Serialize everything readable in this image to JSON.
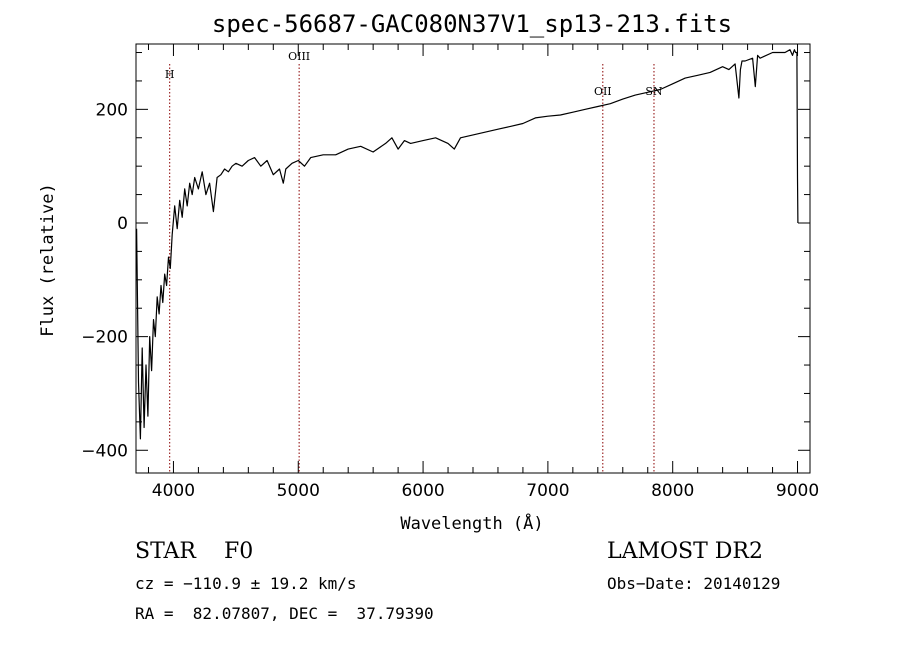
{
  "chart_data": {
    "type": "line",
    "title": "spec-56687-GAC080N37V1_sp13-213.fits",
    "xlabel": "Wavelength (Å)",
    "ylabel": "Flux (relative)",
    "xlim": [
      3700,
      9100
    ],
    "ylim": [
      -440,
      315
    ],
    "xticks": [
      4000,
      5000,
      6000,
      7000,
      8000,
      9000
    ],
    "yticks": [
      -400,
      -200,
      0,
      200
    ],
    "series": [
      {
        "x": [
          3705,
          3720,
          3735,
          3750,
          3765,
          3780,
          3795,
          3810,
          3825,
          3840,
          3855,
          3870,
          3885,
          3900,
          3915,
          3930,
          3945,
          3960,
          3975,
          3990,
          4010,
          4030,
          4050,
          4070,
          4090,
          4110,
          4130,
          4150,
          4170,
          4200,
          4230,
          4260,
          4290,
          4320,
          4350,
          4380,
          4410,
          4440,
          4470,
          4500,
          4550,
          4600,
          4650,
          4700,
          4750,
          4800,
          4850,
          4880,
          4900,
          4950,
          5000,
          5050,
          5100,
          5200,
          5300,
          5400,
          5500,
          5600,
          5700,
          5750,
          5800,
          5850,
          5900,
          6000,
          6100,
          6200,
          6250,
          6300,
          6400,
          6500,
          6600,
          6700,
          6800,
          6900,
          7000,
          7100,
          7200,
          7300,
          7400,
          7500,
          7600,
          7700,
          7800,
          7900,
          8000,
          8100,
          8200,
          8300,
          8400,
          8450,
          8500,
          8530,
          8542,
          8555,
          8580,
          8640,
          8662,
          8680,
          8700,
          8800,
          8900,
          8940,
          8960,
          8975,
          8985,
          8995,
          9000,
          9003
        ],
        "y": [
          -10,
          -280,
          -380,
          -220,
          -360,
          -250,
          -340,
          -200,
          -260,
          -170,
          -200,
          -130,
          -160,
          -110,
          -140,
          -90,
          -110,
          -60,
          -80,
          -20,
          30,
          -10,
          40,
          10,
          60,
          30,
          70,
          50,
          80,
          60,
          90,
          50,
          70,
          20,
          80,
          85,
          95,
          90,
          100,
          105,
          100,
          110,
          115,
          100,
          110,
          85,
          95,
          70,
          95,
          105,
          110,
          100,
          115,
          120,
          120,
          130,
          135,
          125,
          140,
          150,
          130,
          145,
          140,
          145,
          150,
          140,
          130,
          150,
          155,
          160,
          165,
          170,
          175,
          185,
          188,
          190,
          195,
          200,
          205,
          210,
          218,
          225,
          230,
          235,
          245,
          255,
          260,
          265,
          275,
          270,
          280,
          220,
          270,
          285,
          285,
          290,
          240,
          295,
          290,
          300,
          300,
          305,
          295,
          305,
          300,
          300,
          80,
          0
        ]
      }
    ],
    "line_markers": [
      {
        "label": "H",
        "x": 3970
      },
      {
        "label": "OIII",
        "x": 5007
      },
      {
        "label": "OII",
        "x": 7440
      },
      {
        "label": "SN",
        "x": 7850
      }
    ],
    "grid": false,
    "colors": {
      "spectrum": "#000000",
      "marker": "#8b0000"
    }
  },
  "info": {
    "class_line": "STAR    F0",
    "survey": "LAMOST DR2",
    "cz": "cz = −110.9 ± 19.2 km/s",
    "obs_date": "Obs−Date: 20140129",
    "radec": "RA =  82.07807, DEC =  37.79390"
  }
}
